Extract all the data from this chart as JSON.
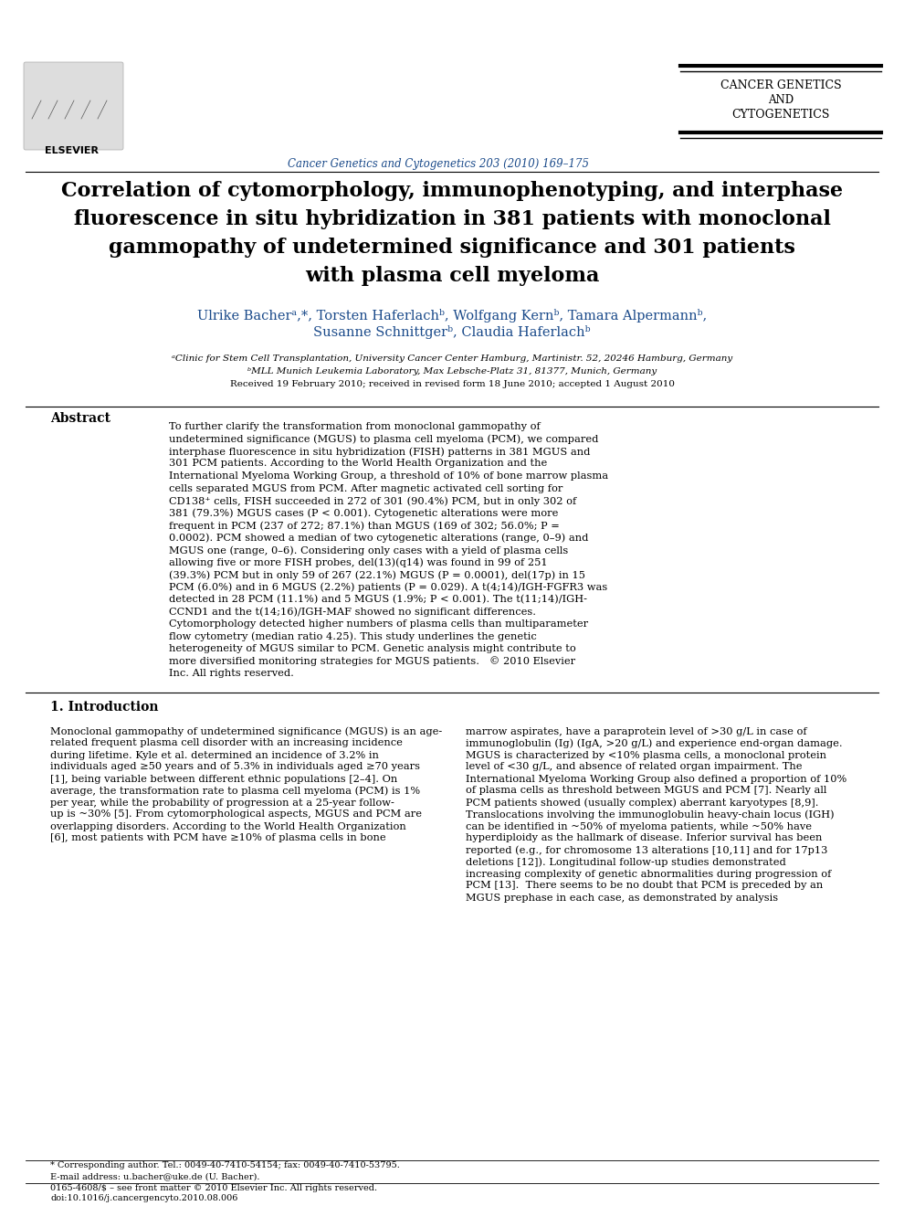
{
  "page_bg": "#ffffff",
  "header": {
    "journal_name": "Cancer Genetics and Cytogenetics",
    "journal_color": "#1a4a8a",
    "journal_issue": "Cancer Genetics and Cytogenetics 203 (2010) 169–175",
    "journal_issue_color": "#1a4a8a",
    "sidebar_title_line1": "Cancer Genetics",
    "sidebar_title_line2": "and",
    "sidebar_title_line3": "Cytogenetics",
    "sidebar_color": "#000000"
  },
  "article_title": "Correlation of cytomorphology, immunophenotyping, and interphase\nfluorescence in situ hybridization in 381 patients with monoclonal\ngammopathy of undetermined significance and 301 patients\nwith plasma cell myeloma",
  "authors": "Ulrike Bacherᵃ,*, Torsten Haferlachᵇ, Wolfgang Kernᵇ, Tamara Alpermannᵇ,\nSusanne Schnittgerᵇ, Claudia Haferlachᵇ",
  "affil1": "ᵃClinic for Stem Cell Transplantation, University Cancer Center Hamburg, Martinistr. 52, 20246 Hamburg, Germany",
  "affil2": "ᵇMLL Munich Leukemia Laboratory, Max Lebsche-Platz 31, 81377, Munich, Germany",
  "received": "Received 19 February 2010; received in revised form 18 June 2010; accepted 1 August 2010",
  "abstract_label": "Abstract",
  "abstract_text": "To further clarify the transformation from monoclonal gammopathy of undetermined significance (MGUS) to plasma cell myeloma (PCM), we compared interphase fluorescence in situ hybridization (FISH) patterns in 381 MGUS and 301 PCM patients. According to the World Health Organization and the International Myeloma Working Group, a threshold of 10% of bone marrow plasma cells separated MGUS from PCM. After magnetic activated cell sorting for CD138⁺ cells, FISH succeeded in 272 of 301 (90.4%) PCM, but in only 302 of 381 (79.3%) MGUS cases (P < 0.001). Cytogenetic alterations were more frequent in PCM (237 of 272; 87.1%) than MGUS (169 of 302; 56.0%; P = 0.0002). PCM showed a median of two cytogenetic alterations (range, 0–9) and MGUS one (range, 0–6). Considering only cases with a yield of plasma cells allowing five or more FISH probes, del(13)(q14) was found in 99 of 251 (39.3%) PCM but in only 59 of 267 (22.1%) MGUS (P = 0.0001), del(17p) in 15 PCM (6.0%) and in 6 MGUS (2.2%) patients (P = 0.029). A t(4;14)/IGH-FGFR3 was detected in 28 PCM (11.1%) and 5 MGUS (1.9%; P < 0.001). The t(11;14)/IGH-CCND1 and the t(14;16)/IGH-MAF showed no significant differences. Cytomorphology detected higher numbers of plasma cells than multiparameter flow cytometry (median ratio 4.25). This study underlines the genetic heterogeneity of MGUS similar to PCM. Genetic analysis might contribute to more diversified monitoring strategies for MGUS patients.   © 2010 Elsevier Inc. All rights reserved.",
  "section1_title": "1. Introduction",
  "section1_col1": "Monoclonal gammopathy of undetermined significance (MGUS) is an age-related frequent plasma cell disorder with an increasing incidence during lifetime. Kyle et al. determined an incidence of 3.2% in individuals aged ≥50 years and of 5.3% in individuals aged ≥70 years [1], being variable between different ethnic populations [2–4]. On average, the transformation rate to plasma cell myeloma (PCM) is 1% per year, while the probability of progression at a 25-year follow-up is ~30% [5]. From cytomorphological aspects, MGUS and PCM are overlapping disorders. According to the World Health Organization [6], most patients with PCM have ≥10% of plasma cells in bone",
  "section1_col2": "marrow aspirates, have a paraprotein level of >30 g/L in case of immunoglobulin (Ig) (IgA, >20 g/L) and experience end-organ damage. MGUS is characterized by <10% plasma cells, a monoclonal protein level of <30 g/L, and absence of related organ impairment. The International Myeloma Working Group also defined a proportion of 10% of plasma cells as threshold between MGUS and PCM [7]. Nearly all PCM patients showed (usually complex) aberrant karyotypes [8,9]. Translocations involving the immunoglobulin heavy-chain locus (IGH) can be identified in ~50% of myeloma patients, while ~50% have hyperdiploidy as the hallmark of disease. Inferior survival has been reported (e.g., for chromosome 13 alterations [10,11] and for 17p13 deletions [12]). Longitudinal follow-up studies demonstrated increasing complexity of genetic abnormalities during progression of PCM [13].\n\nThere seems to be no doubt that PCM is preceded by an MGUS prephase in each case, as demonstrated by analysis",
  "footnote_star": "* Corresponding author. Tel.: 0049-40-7410-54154; fax: 0049-40-7410-53795.",
  "footnote_email": "E-mail address: u.bacher@uke.de (U. Bacher).",
  "footer_issn": "0165-4608/$ – see front matter © 2010 Elsevier Inc. All rights reserved.",
  "footer_doi": "doi:10.1016/j.cancergencyto.2010.08.006"
}
